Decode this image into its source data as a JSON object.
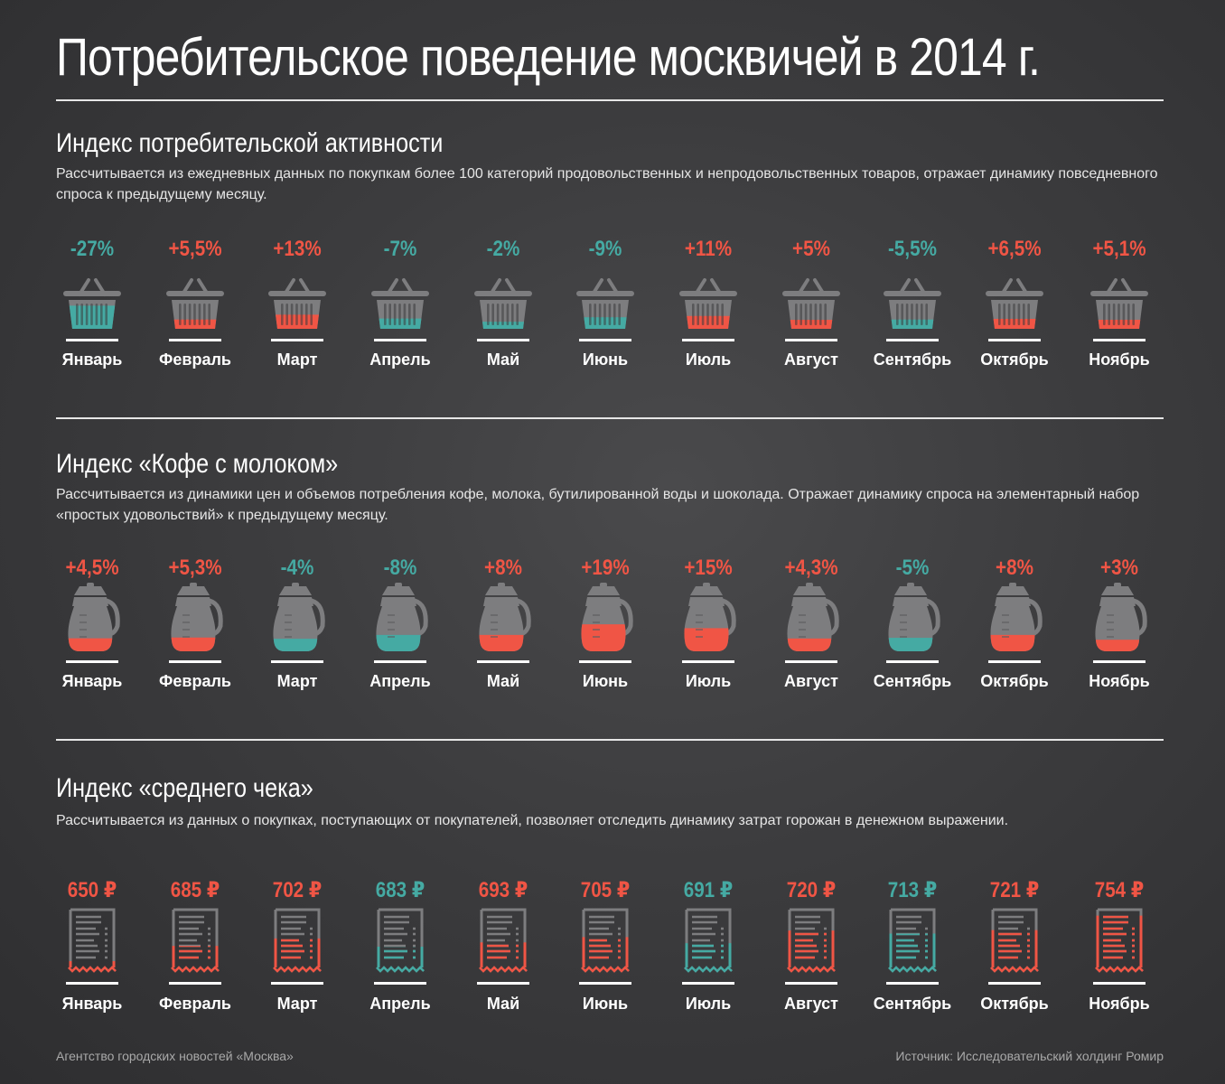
{
  "title": "Потребительское поведение москвичей в 2014 г.",
  "colors": {
    "positive": "#f05545",
    "negative": "#45aaa3",
    "icon_gray": "#7d7d7f",
    "text": "#ffffff"
  },
  "months": [
    "Январь",
    "Февраль",
    "Март",
    "Апрель",
    "Май",
    "Июнь",
    "Июль",
    "Август",
    "Сентябрь",
    "Октябрь",
    "Ноябрь"
  ],
  "sections": {
    "activity": {
      "title": "Индекс потребительской активности",
      "description": "Рассчитывается из ежедневных данных по покупкам более 100 категорий продовольственных и непродовольственных товаров, отражает динамику повседневного спроса к предыдущему месяцу.",
      "icon": "basket-icon"
    },
    "coffee": {
      "title": "Индекс «Кофе с молоком»",
      "description": "Рассчитывается из динамики цен и объемов потребления кофе, молока, бутилированной воды и шоколада. Отражает динамику спроса на элементарный набор «простых удовольствий» к предыдущему месяцу.",
      "icon": "coffee-pot-icon"
    },
    "check": {
      "title": "Индекс «среднего чека»",
      "description": "Рассчитывается из данных о покупках, поступающих от покупателей, позволяет отследить динамику затрат горожан в денежном выражении.",
      "icon": "receipt-icon"
    }
  },
  "chart_data": [
    {
      "type": "table",
      "title": "Индекс потребительской активности",
      "categories": [
        "Январь",
        "Февраль",
        "Март",
        "Апрель",
        "Май",
        "Июнь",
        "Июль",
        "Август",
        "Сентябрь",
        "Октябрь",
        "Ноябрь"
      ],
      "labels": [
        "-27%",
        "+5,5%",
        "+13%",
        "-7%",
        "-2%",
        "-9%",
        "+11%",
        "+5%",
        "-5,5%",
        "+6,5%",
        "+5,1%"
      ],
      "values": [
        -27,
        5.5,
        13,
        -7,
        -2,
        -9,
        11,
        5,
        -5.5,
        6.5,
        5.1
      ],
      "unit": "%"
    },
    {
      "type": "table",
      "title": "Индекс «Кофе с молоком»",
      "categories": [
        "Январь",
        "Февраль",
        "Март",
        "Апрель",
        "Май",
        "Июнь",
        "Июль",
        "Август",
        "Сентябрь",
        "Октябрь",
        "Ноябрь"
      ],
      "labels": [
        "+4,5%",
        "+5,3%",
        "-4%",
        "-8%",
        "+8%",
        "+19%",
        "+15%",
        "+4,3%",
        "-5%",
        "+8%",
        "+3%"
      ],
      "values": [
        4.5,
        5.3,
        -4,
        -8,
        8,
        19,
        15,
        4.3,
        -5,
        8,
        3
      ],
      "unit": "%"
    },
    {
      "type": "table",
      "title": "Индекс «среднего чека»",
      "categories": [
        "Январь",
        "Февраль",
        "Март",
        "Апрель",
        "Май",
        "Июнь",
        "Июль",
        "Август",
        "Сентябрь",
        "Октябрь",
        "Ноябрь"
      ],
      "labels": [
        "650 ₽",
        "685 ₽",
        "702 ₽",
        "683 ₽",
        "693 ₽",
        "705 ₽",
        "691 ₽",
        "720 ₽",
        "713 ₽",
        "721 ₽",
        "754 ₽"
      ],
      "values": [
        650,
        685,
        702,
        683,
        693,
        705,
        691,
        720,
        713,
        721,
        754
      ],
      "direction": [
        "up",
        "up",
        "up",
        "down",
        "up",
        "up",
        "down",
        "up",
        "down",
        "up",
        "up"
      ],
      "unit": "₽"
    }
  ],
  "footer": {
    "agency": "Агентство городских новостей «Москва»",
    "source": "Источник: Исследовательский холдинг Ромир"
  }
}
